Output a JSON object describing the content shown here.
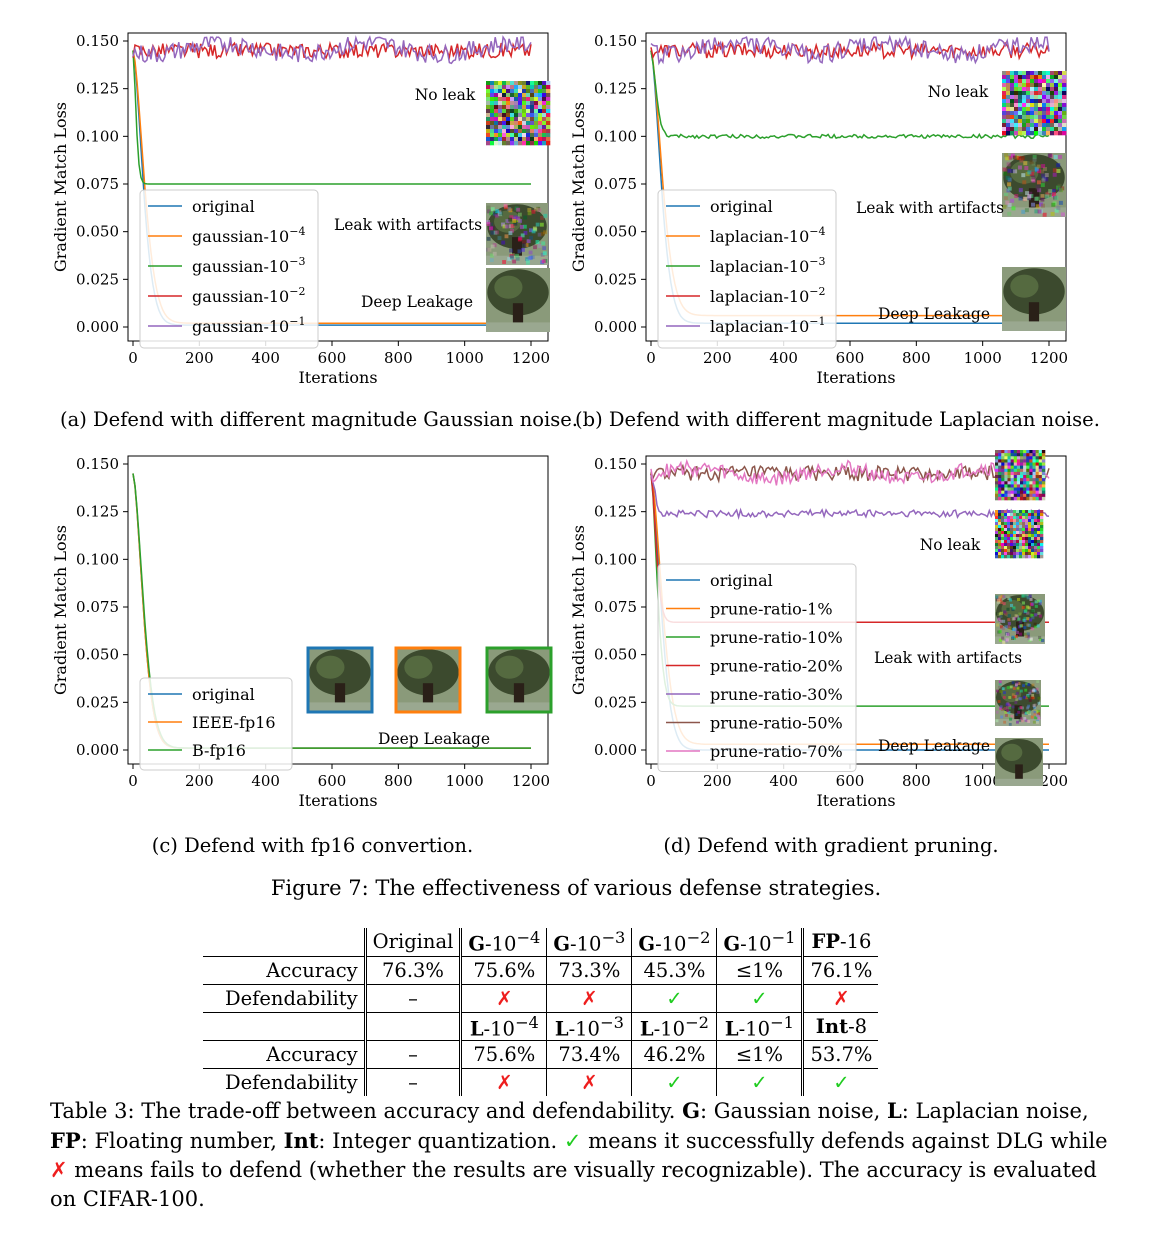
{
  "panels": [
    {
      "ylabel": "Gradient Match Loss",
      "xlabel": "Iterations",
      "caption": "(a) Defend with different magnitude Gaussian noise.",
      "annotations": [
        "No leak",
        "Leak with artifacts",
        "Deep Leakage"
      ],
      "legend": [
        {
          "base": "original",
          "exp": ""
        },
        {
          "base": "gaussian-10",
          "exp": "−4"
        },
        {
          "base": "gaussian-10",
          "exp": "−3"
        },
        {
          "base": "gaussian-10",
          "exp": "−2"
        },
        {
          "base": "gaussian-10",
          "exp": "−1"
        }
      ]
    },
    {
      "ylabel": "Gradient Match Loss",
      "xlabel": "Iterations",
      "caption": "(b) Defend with different magnitude Laplacian noise.",
      "annotations": [
        "No leak",
        "Leak with artifacts",
        "Deep Leakage"
      ],
      "legend": [
        {
          "base": "original",
          "exp": ""
        },
        {
          "base": "laplacian-10",
          "exp": "−4"
        },
        {
          "base": "laplacian-10",
          "exp": "−3"
        },
        {
          "base": "laplacian-10",
          "exp": "−2"
        },
        {
          "base": "laplacian-10",
          "exp": "−1"
        }
      ]
    },
    {
      "ylabel": "Gradient Match Loss",
      "xlabel": "Iterations",
      "caption": "(c) Defend with fp16 convertion.",
      "annotations": [
        "Deep Leakage"
      ],
      "legend": [
        {
          "base": "original",
          "exp": ""
        },
        {
          "base": "IEEE-fp16",
          "exp": ""
        },
        {
          "base": "B-fp16",
          "exp": ""
        }
      ]
    },
    {
      "ylabel": "Gradient Match Loss",
      "xlabel": "Iterations",
      "caption": "(d) Defend with gradient pruning.",
      "annotations": [
        "No leak",
        "Leak with artifacts",
        "Deep Leakage"
      ],
      "legend": [
        {
          "base": "original",
          "exp": ""
        },
        {
          "base": "prune-ratio-1%",
          "exp": ""
        },
        {
          "base": "prune-ratio-10%",
          "exp": ""
        },
        {
          "base": "prune-ratio-20%",
          "exp": ""
        },
        {
          "base": "prune-ratio-30%",
          "exp": ""
        },
        {
          "base": "prune-ratio-50%",
          "exp": ""
        },
        {
          "base": "prune-ratio-70%",
          "exp": ""
        }
      ]
    }
  ],
  "figure_caption": "Figure 7: The effectiveness of various defense strategies.",
  "colors": {
    "original": "#1f77b4",
    "c1": "#ff7f0e",
    "c2": "#2ca02c",
    "c3": "#d62728",
    "c4": "#9467bd",
    "c5": "#8c564b",
    "c6": "#e377c2",
    "check": "#1fcc1f",
    "cross": "#ee1e1e"
  },
  "chart_data": [
    {
      "type": "line",
      "xlim": [
        0,
        1200
      ],
      "ylim": [
        0,
        0.15
      ],
      "xticks": [
        "0",
        "200",
        "400",
        "600",
        "800",
        "1000",
        "1200"
      ],
      "yticks": [
        "0.000",
        "0.025",
        "0.050",
        "0.075",
        "0.100",
        "0.125",
        "0.150"
      ],
      "legend_position": "lower-left",
      "series": [
        {
          "name": "original",
          "color": "#1f77b4",
          "start": 0.145,
          "end": 0.001,
          "decay_to": 40,
          "noise": 0
        },
        {
          "name": "gaussian-10^-4",
          "color": "#ff7f0e",
          "start": 0.145,
          "end": 0.002,
          "decay_to": 45,
          "noise": 0
        },
        {
          "name": "gaussian-10^-3",
          "color": "#2ca02c",
          "start": 0.145,
          "end": 0.075,
          "decay_to": 12,
          "noise": 0
        },
        {
          "name": "gaussian-10^-2",
          "color": "#d62728",
          "start": 0.145,
          "end": 0.145,
          "decay_to": 0,
          "noise": 0.004
        },
        {
          "name": "gaussian-10^-1",
          "color": "#9467bd",
          "start": 0.146,
          "end": 0.146,
          "decay_to": 0,
          "noise": 0.005
        }
      ]
    },
    {
      "type": "line",
      "xlim": [
        0,
        1200
      ],
      "ylim": [
        0,
        0.15
      ],
      "xticks": [
        "0",
        "200",
        "400",
        "600",
        "800",
        "1000",
        "1200"
      ],
      "yticks": [
        "0.000",
        "0.025",
        "0.050",
        "0.075",
        "0.100",
        "0.125",
        "0.150"
      ],
      "legend_position": "lower-left",
      "series": [
        {
          "name": "original",
          "color": "#1f77b4",
          "start": 0.145,
          "end": 0.002,
          "decay_to": 40,
          "noise": 0
        },
        {
          "name": "laplacian-10^-4",
          "color": "#ff7f0e",
          "start": 0.145,
          "end": 0.006,
          "decay_to": 45,
          "noise": 0
        },
        {
          "name": "laplacian-10^-3",
          "color": "#2ca02c",
          "start": 0.145,
          "end": 0.1,
          "decay_to": 20,
          "noise": 0.001
        },
        {
          "name": "laplacian-10^-2",
          "color": "#d62728",
          "start": 0.145,
          "end": 0.145,
          "decay_to": 0,
          "noise": 0.004
        },
        {
          "name": "laplacian-10^-1",
          "color": "#9467bd",
          "start": 0.146,
          "end": 0.146,
          "decay_to": 0,
          "noise": 0.005
        }
      ]
    },
    {
      "type": "line",
      "xlim": [
        0,
        1200
      ],
      "ylim": [
        0,
        0.15
      ],
      "xticks": [
        "0",
        "200",
        "400",
        "600",
        "800",
        "1000",
        "1200"
      ],
      "yticks": [
        "0.000",
        "0.025",
        "0.050",
        "0.075",
        "0.100",
        "0.125",
        "0.150"
      ],
      "legend_position": "lower-left",
      "series": [
        {
          "name": "original",
          "color": "#1f77b4",
          "start": 0.145,
          "end": 0.001,
          "decay_to": 40,
          "noise": 0
        },
        {
          "name": "IEEE-fp16",
          "color": "#ff7f0e",
          "start": 0.145,
          "end": 0.001,
          "decay_to": 40,
          "noise": 0
        },
        {
          "name": "B-fp16",
          "color": "#2ca02c",
          "start": 0.145,
          "end": 0.001,
          "decay_to": 42,
          "noise": 0
        }
      ]
    },
    {
      "type": "line",
      "xlim": [
        0,
        1200
      ],
      "ylim": [
        0,
        0.15
      ],
      "xticks": [
        "0",
        "200",
        "400",
        "600",
        "800",
        "1000",
        "1200"
      ],
      "yticks": [
        "0.000",
        "0.025",
        "0.050",
        "0.075",
        "0.100",
        "0.125",
        "0.150"
      ],
      "legend_position": "lower-left",
      "series": [
        {
          "name": "original",
          "color": "#1f77b4",
          "start": 0.145,
          "end": 0.0,
          "decay_to": 40,
          "noise": 0
        },
        {
          "name": "prune-ratio-1%",
          "color": "#ff7f0e",
          "start": 0.145,
          "end": 0.003,
          "decay_to": 45,
          "noise": 0
        },
        {
          "name": "prune-ratio-10%",
          "color": "#2ca02c",
          "start": 0.145,
          "end": 0.023,
          "decay_to": 25,
          "noise": 0
        },
        {
          "name": "prune-ratio-20%",
          "color": "#d62728",
          "start": 0.145,
          "end": 0.067,
          "decay_to": 20,
          "noise": 0
        },
        {
          "name": "prune-ratio-30%",
          "color": "#9467bd",
          "start": 0.145,
          "end": 0.124,
          "decay_to": 15,
          "noise": 0.002
        },
        {
          "name": "prune-ratio-50%",
          "color": "#8c564b",
          "start": 0.145,
          "end": 0.145,
          "decay_to": 0,
          "noise": 0.004
        },
        {
          "name": "prune-ratio-70%",
          "color": "#e377c2",
          "start": 0.145,
          "end": 0.145,
          "decay_to": 0,
          "noise": 0.004
        }
      ]
    }
  ],
  "table": {
    "row1": [
      "",
      "Original",
      "G-10^{−4}",
      "G-10^{−3}",
      "G-10^{−2}",
      "G-10^{−1}",
      "FP-16"
    ],
    "accuracy_label": "Accuracy",
    "defend_label": "Defendability",
    "acc1": [
      "76.3%",
      "75.6%",
      "73.3%",
      "45.3%",
      "≤1%",
      "76.1%"
    ],
    "def1": [
      "–",
      "✗",
      "✗",
      "✓",
      "✓",
      "✗"
    ],
    "acc2": [
      "–",
      "75.6%",
      "73.4%",
      "46.2%",
      "≤1%",
      "53.7%"
    ],
    "def2": [
      "–",
      "✗",
      "✗",
      "✓",
      "✓",
      "✓"
    ],
    "hdr1": {
      "original": "Original",
      "g4": "G",
      "g3": "G",
      "g2": "G",
      "g1": "G",
      "fp": "FP",
      "fpsuf": "-16",
      "ten": "-10",
      "e4": "−4",
      "e3": "−3",
      "e2": "−2",
      "e1": "−1"
    },
    "hdr2": {
      "l": "L",
      "ten": "-10",
      "e4": "−4",
      "e3": "−3",
      "e2": "−2",
      "e1": "−1",
      "int": "Int",
      "intsuf": "-8"
    }
  },
  "table_caption": {
    "p1": "Table 3: The trade-off between accuracy and defendability. ",
    "g": "G",
    "p2": ": Gaussian noise, ",
    "l": "L",
    "p3": ": Laplacian noise, ",
    "fp": "FP",
    "p4": ": Floating number, ",
    "int": "Int",
    "p5": ": Integer quantization. ",
    "check": "✓",
    "p6": " means it successfully defends against DLG while ",
    "cross": "✗",
    "p7": " means fails to defend (whether the results are visually recognizable). The accuracy is evaluated on CIFAR-100."
  }
}
